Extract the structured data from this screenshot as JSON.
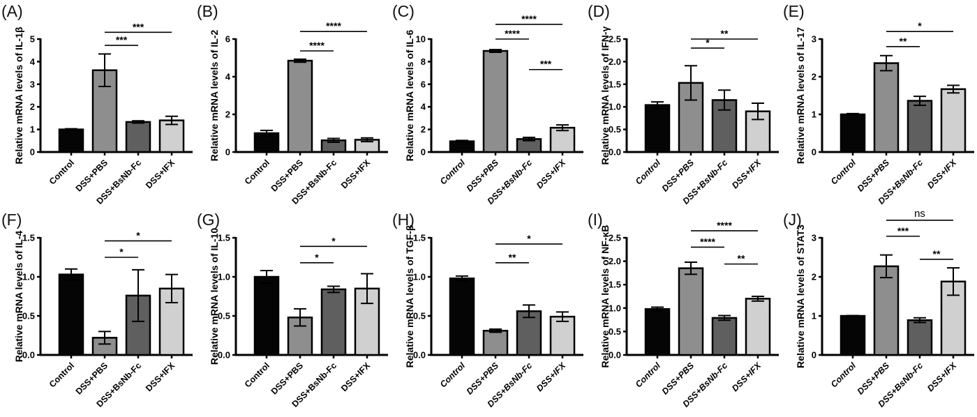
{
  "chart_data": [
    {
      "panel": "(A)",
      "type": "bar",
      "ylabel": "Relative mRNA levels of IL-1β",
      "categories": [
        "Control",
        "DSS+PBS",
        "DSS+BsNb-Fc",
        "DSS+IFX"
      ],
      "ylim": [
        0,
        5
      ],
      "yticks": [
        "0",
        "1",
        "2",
        "3",
        "4",
        "5"
      ],
      "values": [
        1.0,
        3.62,
        1.33,
        1.4
      ],
      "errors": [
        0.03,
        0.72,
        0.05,
        0.18
      ],
      "italic_xlabels": false,
      "significance": [
        {
          "from": "DSS+PBS",
          "to": "DSS+BsNb-Fc",
          "label": "***",
          "y": 4.72
        },
        {
          "from": "DSS+PBS",
          "to": "DSS+IFX",
          "label": "***",
          "y": 5.3
        }
      ]
    },
    {
      "panel": "(B)",
      "type": "bar",
      "ylabel": "Relative mRNA levels of IL-2",
      "categories": [
        "Control",
        "DSS+PBS",
        "DSS+BsNb-Fc",
        "DSS+IFX"
      ],
      "ylim": [
        0,
        6
      ],
      "yticks": [
        "0",
        "2",
        "4",
        "6"
      ],
      "values": [
        1.0,
        4.85,
        0.62,
        0.65
      ],
      "errors": [
        0.15,
        0.08,
        0.1,
        0.1
      ],
      "italic_xlabels": false,
      "significance": [
        {
          "from": "DSS+PBS",
          "to": "DSS+BsNb-Fc",
          "label": "****",
          "y": 5.37
        },
        {
          "from": "DSS+PBS",
          "to": "DSS+IFX",
          "label": "****",
          "y": 6.4
        }
      ]
    },
    {
      "panel": "(C)",
      "type": "bar",
      "ylabel": "Relative mRNA levels of IL-6",
      "categories": [
        "Control",
        "DSS+PBS",
        "DSS+BsNb-Fc",
        "DSS+IFX"
      ],
      "ylim": [
        0,
        10
      ],
      "yticks": [
        "0",
        "2",
        "4",
        "6",
        "8",
        "10"
      ],
      "values": [
        0.95,
        8.95,
        1.15,
        2.15
      ],
      "errors": [
        0.08,
        0.12,
        0.15,
        0.25
      ],
      "italic_xlabels": true,
      "significance": [
        {
          "from": "DSS+PBS",
          "to": "DSS+BsNb-Fc",
          "label": "****",
          "y": 10.0
        },
        {
          "from": "DSS+PBS",
          "to": "DSS+IFX",
          "label": "****",
          "y": 11.3
        },
        {
          "from": "DSS+BsNb-Fc",
          "to": "DSS+IFX",
          "label": "***",
          "y": 7.3
        }
      ]
    },
    {
      "panel": "(D)",
      "type": "bar",
      "ylabel": "Relative mRNA levels of IFN-γ",
      "categories": [
        "Control",
        "DSS+PBS",
        "DSS+BsNb-Fc",
        "DSS+IFX"
      ],
      "ylim": [
        0,
        2.5
      ],
      "yticks": [
        "0.0",
        "0.5",
        "1.0",
        "1.5",
        "2.0",
        "2.5"
      ],
      "values": [
        1.04,
        1.53,
        1.15,
        0.9
      ],
      "errors": [
        0.07,
        0.38,
        0.22,
        0.18
      ],
      "italic_xlabels": true,
      "significance": [
        {
          "from": "DSS+PBS",
          "to": "DSS+BsNb-Fc",
          "label": "*",
          "y": 2.3
        },
        {
          "from": "DSS+PBS",
          "to": "DSS+IFX",
          "label": "**",
          "y": 2.5
        }
      ]
    },
    {
      "panel": "(E)",
      "type": "bar",
      "ylabel": "Relative mRNA levels of IL-17",
      "categories": [
        "Control",
        "DSS+PBS",
        "DSS+BsNb-Fc",
        "DSS+IFX"
      ],
      "ylim": [
        0,
        3
      ],
      "yticks": [
        "0",
        "1",
        "2",
        "3"
      ],
      "values": [
        1.0,
        2.36,
        1.36,
        1.67
      ],
      "errors": [
        0.02,
        0.2,
        0.12,
        0.1
      ],
      "italic_xlabels": true,
      "significance": [
        {
          "from": "DSS+PBS",
          "to": "DSS+BsNb-Fc",
          "label": "**",
          "y": 2.8
        },
        {
          "from": "DSS+PBS",
          "to": "DSS+IFX",
          "label": "*",
          "y": 3.2
        }
      ]
    },
    {
      "panel": "(F)",
      "type": "bar",
      "ylabel": "Relative mRNA levels of IL-4",
      "categories": [
        "Control",
        "DSS+PBS",
        "DSS+BsNb-Fc",
        "DSS+IFX"
      ],
      "ylim": [
        0,
        1.5
      ],
      "yticks": [
        "0.0",
        "0.5",
        "1.0",
        "1.5"
      ],
      "values": [
        1.03,
        0.22,
        0.76,
        0.85
      ],
      "errors": [
        0.07,
        0.08,
        0.33,
        0.18
      ],
      "italic_xlabels": false,
      "significance": [
        {
          "from": "DSS+PBS",
          "to": "DSS+BsNb-Fc",
          "label": "*",
          "y": 1.25
        },
        {
          "from": "DSS+PBS",
          "to": "DSS+IFX",
          "label": "*",
          "y": 1.46
        }
      ]
    },
    {
      "panel": "(G)",
      "type": "bar",
      "ylabel": "Relative mRNA levels of IL-10",
      "categories": [
        "Control",
        "DSS+PBS",
        "DSS+BsNb-Fc",
        "DSS+IFX"
      ],
      "ylim": [
        0,
        1.5
      ],
      "yticks": [
        "0.0",
        "0.5",
        "1.0",
        "1.5"
      ],
      "values": [
        1.0,
        0.48,
        0.84,
        0.85
      ],
      "errors": [
        0.08,
        0.11,
        0.04,
        0.19
      ],
      "italic_xlabels": false,
      "significance": [
        {
          "from": "DSS+PBS",
          "to": "DSS+BsNb-Fc",
          "label": "*",
          "y": 1.18
        },
        {
          "from": "DSS+PBS",
          "to": "DSS+IFX",
          "label": "*",
          "y": 1.39
        }
      ]
    },
    {
      "panel": "(H)",
      "type": "bar",
      "ylabel": "Relative mRNA levels of TGF-β",
      "categories": [
        "Control",
        "DSS+PBS",
        "DSS+BsNb-Fc",
        "DSS+IFX"
      ],
      "ylim": [
        0,
        1.5
      ],
      "yticks": [
        "0.0",
        "0.5",
        "1.0",
        "1.5"
      ],
      "values": [
        0.98,
        0.31,
        0.56,
        0.49
      ],
      "errors": [
        0.03,
        0.02,
        0.08,
        0.06
      ],
      "italic_xlabels": true,
      "significance": [
        {
          "from": "DSS+PBS",
          "to": "DSS+BsNb-Fc",
          "label": "**",
          "y": 1.18
        },
        {
          "from": "DSS+PBS",
          "to": "DSS+IFX",
          "label": "*",
          "y": 1.42
        }
      ]
    },
    {
      "panel": "(I)",
      "type": "bar",
      "ylabel": "Relative mRNA levels of NF-κB",
      "categories": [
        "Control",
        "DSS+PBS",
        "DSS+BsNb-Fc",
        "DSS+IFX"
      ],
      "ylim": [
        0,
        2.5
      ],
      "yticks": [
        "0.0",
        "0.5",
        "1.0",
        "1.5",
        "2.0",
        "2.5"
      ],
      "values": [
        0.98,
        1.85,
        0.79,
        1.2
      ],
      "errors": [
        0.04,
        0.13,
        0.05,
        0.05
      ],
      "italic_xlabels": true,
      "significance": [
        {
          "from": "DSS+PBS",
          "to": "DSS+BsNb-Fc",
          "label": "****",
          "y": 2.3
        },
        {
          "from": "DSS+PBS",
          "to": "DSS+IFX",
          "label": "****",
          "y": 2.65
        },
        {
          "from": "DSS+BsNb-Fc",
          "to": "DSS+IFX",
          "label": "**",
          "y": 1.94
        }
      ]
    },
    {
      "panel": "(J)",
      "type": "bar",
      "ylabel": "Relative mRNA levels of STAT3",
      "categories": [
        "Control",
        "DSS+PBS",
        "DSS+BsNb-Fc",
        "DSS+IFX"
      ],
      "ylim": [
        0,
        3
      ],
      "yticks": [
        "0",
        "1",
        "2",
        "3"
      ],
      "values": [
        1.0,
        2.27,
        0.89,
        1.88
      ],
      "errors": [
        0.01,
        0.29,
        0.06,
        0.35
      ],
      "italic_xlabels": true,
      "significance": [
        {
          "from": "DSS+PBS",
          "to": "DSS+BsNb-Fc",
          "label": "***",
          "y": 3.04
        },
        {
          "from": "DSS+PBS",
          "to": "DSS+IFX",
          "label": "ns",
          "y": 3.45
        },
        {
          "from": "DSS+BsNb-Fc",
          "to": "DSS+IFX",
          "label": "**",
          "y": 2.45
        }
      ]
    }
  ],
  "colors": {
    "Control": "#050505",
    "DSS+PBS": "#8e8e8e",
    "DSS+BsNb-Fc": "#5f5f5f",
    "DSS+IFX": "#d0d0d0",
    "outline": "#000000"
  }
}
